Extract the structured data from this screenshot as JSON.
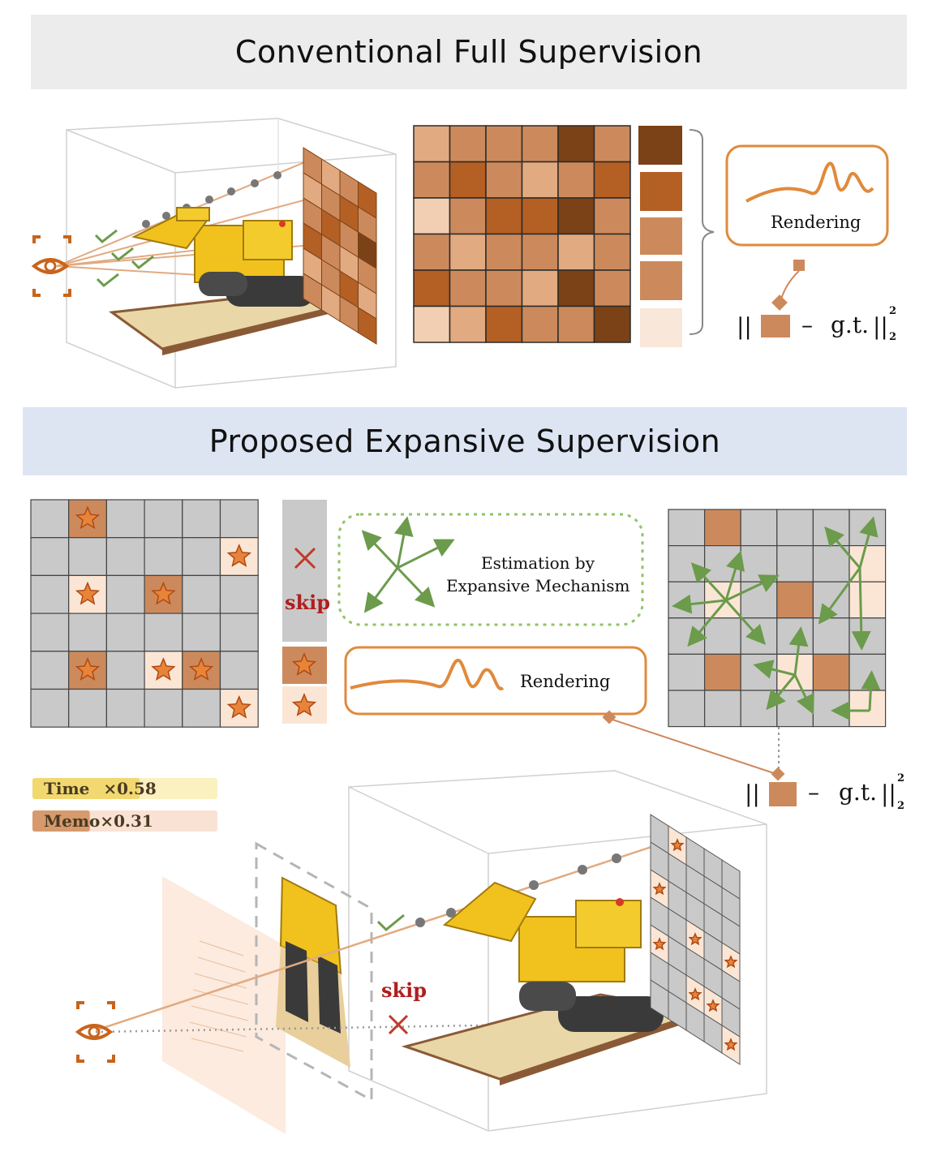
{
  "headers": {
    "top": "Conventional Full Supervision",
    "bottom": "Proposed Expansive Supervision"
  },
  "labels": {
    "rendering_top": "Rendering",
    "rendering_bottom": "Rendering",
    "estimation_line1": "Estimation by",
    "estimation_line2": "Expansive Mechanism",
    "skip_mid": "skip",
    "skip_scene": "skip",
    "loss_bars": "||",
    "loss_minus": "–",
    "loss_gt": "g.t.",
    "loss_norm": "||",
    "loss_sup": "2",
    "loss_sub": "2"
  },
  "metrics": {
    "time": {
      "label": "Time",
      "factor": "×0.58",
      "value": 0.58
    },
    "memo": {
      "label": "Memo",
      "factor": "×0.31",
      "value": 0.31
    }
  },
  "palette": {
    "c1": "#f2cfb2",
    "c2": "#e2aa80",
    "c3": "#cc8a5c",
    "c4": "#b45f24",
    "c5": "#7a4216",
    "gray": "#c9c9c9",
    "orange": "#e08a3c",
    "green": "#6b9b4b",
    "red": "#c03a2a"
  }
}
